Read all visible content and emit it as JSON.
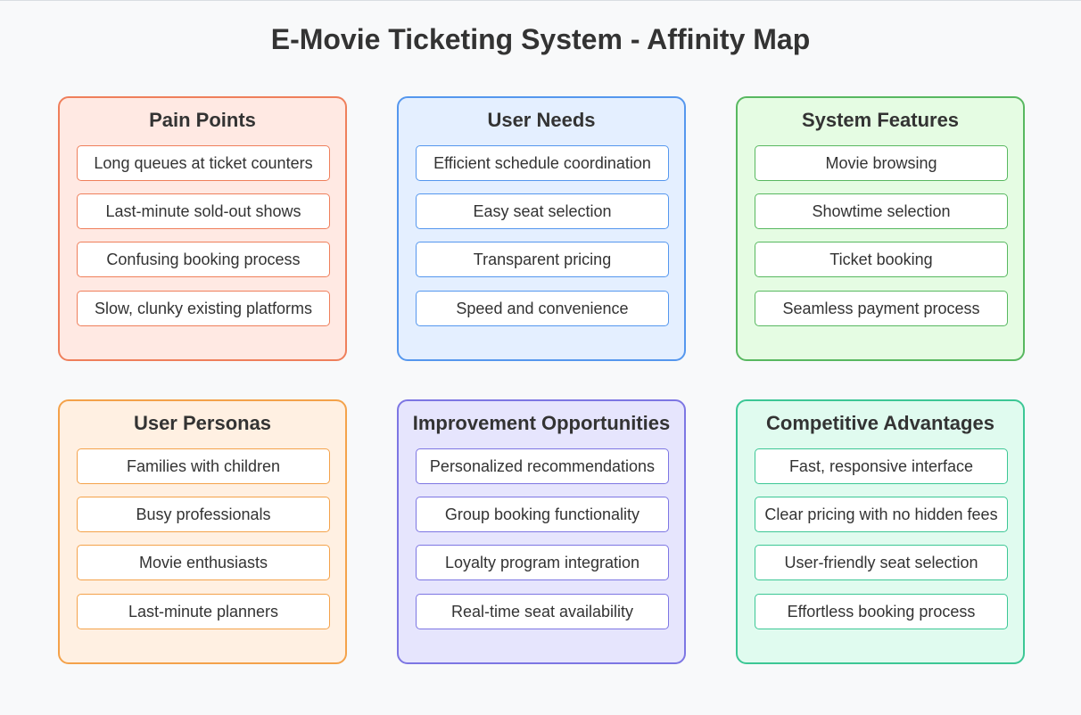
{
  "title": "E-Movie Ticketing System - Affinity Map",
  "colors": {
    "background": "#f8f9fa",
    "pain_points": "#ef7f5b",
    "user_needs": "#5597ee",
    "system_features": "#58b860",
    "user_personas": "#f4a24a",
    "improvement_opportunities": "#7d76e3",
    "competitive_advantages": "#3cc795"
  },
  "groups": [
    {
      "title": "Pain Points",
      "notes": [
        "Long queues at ticket counters",
        "Last-minute sold-out shows",
        "Confusing booking process",
        "Slow, clunky existing platforms"
      ]
    },
    {
      "title": "User Needs",
      "notes": [
        "Efficient schedule coordination",
        "Easy seat selection",
        "Transparent pricing",
        "Speed and convenience"
      ]
    },
    {
      "title": "System Features",
      "notes": [
        "Movie browsing",
        "Showtime selection",
        "Ticket booking",
        "Seamless payment process"
      ]
    },
    {
      "title": "User Personas",
      "notes": [
        "Families with children",
        "Busy professionals",
        "Movie enthusiasts",
        "Last-minute planners"
      ]
    },
    {
      "title": "Improvement Opportunities",
      "notes": [
        "Personalized recommendations",
        "Group booking functionality",
        "Loyalty program integration",
        "Real-time seat availability"
      ]
    },
    {
      "title": "Competitive Advantages",
      "notes": [
        "Fast, responsive interface",
        "Clear pricing with no hidden fees",
        "User-friendly seat selection",
        "Effortless booking process"
      ]
    }
  ]
}
